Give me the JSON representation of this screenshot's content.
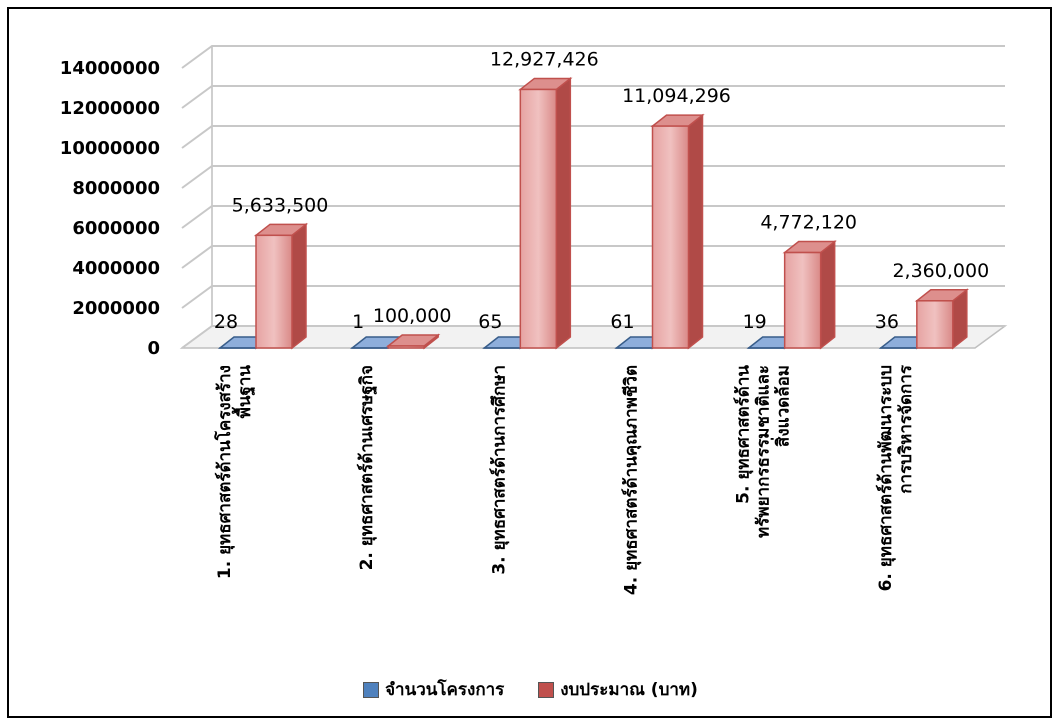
{
  "chart_data": {
    "type": "bar",
    "subtype": "3d-clustered-column",
    "categories": [
      "1. ยุทธศาสตร์ด้านโครงสร้างพื้นฐาน",
      "2. ยุทธศาสตร์ด้านเศรษฐกิจ",
      "3. ยุทธศาสตร์ด้านการศึกษา",
      "4. ยุทธศาสตร์ด้านคุณภาพชีวิต",
      "5. ยุทธศาสตร์ด้านทรัพยากรธรรมชาติและสิ่งแวดล้อม",
      "6. ยุทธศาสตร์ด้านพัฒนาระบบการบริหารจัดการ"
    ],
    "category_lines": [
      [
        "1. ยุทธศาสตร์ด้านโครงสร้าง",
        "พื้นฐาน"
      ],
      [
        "2. ยุทธศาสตร์ด้านเศรษฐกิจ"
      ],
      [
        "3. ยุทธศาสตร์ด้านการศึกษา"
      ],
      [
        "4. ยุทธศาสตร์ด้านคุณภาพชีวิต"
      ],
      [
        "5. ยุทธศาสตร์ด้าน",
        "ทรัพยากรธรรมชาติและ",
        "สิ่งแวดล้อม"
      ],
      [
        "6. ยุทธศาสตร์ด้านพัฒนาระบบ",
        "การบริหารจัดการ"
      ]
    ],
    "series": [
      {
        "name": "จำนวนโครงการ",
        "values": [
          28,
          1,
          65,
          61,
          19,
          36
        ],
        "labels": [
          "28",
          "1",
          "65",
          "61",
          "19",
          "36"
        ],
        "color": "#4f81bd"
      },
      {
        "name": "งบประมาณ (บาท)",
        "values": [
          5633500,
          100000,
          12927426,
          11094296,
          4772120,
          2360000
        ],
        "labels": [
          "5,633,500",
          "100,000",
          "12,927,426",
          "11,094,296",
          "4,772,120",
          "2,360,000"
        ],
        "color": "#c0504d"
      }
    ],
    "yticks": [
      "0",
      "2000000",
      "4000000",
      "6000000",
      "8000000",
      "10000000",
      "12000000",
      "14000000"
    ],
    "ylim": [
      0,
      14000000
    ],
    "grid": true,
    "legend": "bottom",
    "title": "",
    "xlabel": "",
    "ylabel": ""
  }
}
